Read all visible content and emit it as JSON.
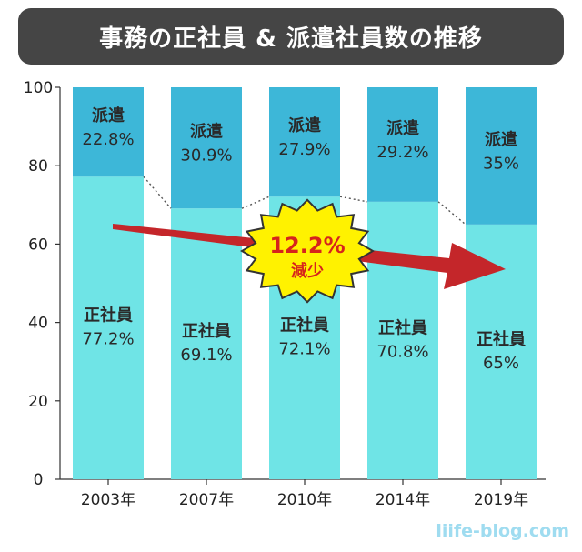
{
  "chart_data": {
    "type": "bar",
    "stacked": true,
    "title": "事務の正社員 & 派遣社員数の推移",
    "categories": [
      "2003年",
      "2007年",
      "2010年",
      "2014年",
      "2019年"
    ],
    "series": [
      {
        "name": "正社員",
        "values": [
          77.2,
          69.1,
          72.1,
          70.8,
          65
        ],
        "labels": [
          "77.2%",
          "69.1%",
          "72.1%",
          "70.8%",
          "65%"
        ],
        "color": "#6fe4e6"
      },
      {
        "name": "派遣",
        "values": [
          22.8,
          30.9,
          27.9,
          29.2,
          35
        ],
        "labels": [
          "22.8%",
          "30.9%",
          "27.9%",
          "29.2%",
          "35%"
        ],
        "color": "#3db7d8"
      }
    ],
    "y_ticks": [
      "0",
      "20",
      "40",
      "60",
      "80",
      "100"
    ],
    "ylim": [
      0,
      100
    ],
    "annotation": {
      "value_text": "12.2%",
      "caption": "減少",
      "burst_color": "#fff200",
      "text_color": "#d6241c",
      "arrow_color": "#c4262a"
    }
  },
  "watermark": "liife-blog.com"
}
